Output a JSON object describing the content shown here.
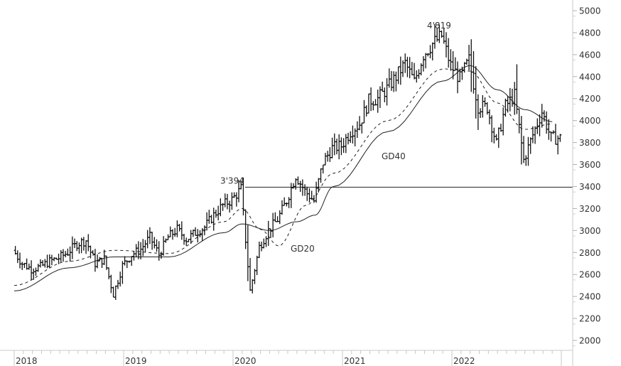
{
  "chart_data": {
    "type": "line",
    "subtype": "ohlc-bar-price-chart-with-moving-averages",
    "title": "",
    "xlabel": "",
    "ylabel": "",
    "ylim": [
      1950,
      5050
    ],
    "y_ticks": [
      2000,
      2200,
      2400,
      2600,
      2800,
      3000,
      3200,
      3400,
      3600,
      3800,
      4000,
      4200,
      4400,
      4600,
      4800,
      5000
    ],
    "x_ticks": [
      "2018",
      "2019",
      "2020",
      "2021",
      "2022"
    ],
    "grid": false,
    "legend": "none",
    "axis_position": "right",
    "annotations": [
      {
        "text": "3'394",
        "value": 3394,
        "note": "Feb 2020 high, horizontal reference line drawn from here to right edge"
      },
      {
        "text": "4'819",
        "value": 4819,
        "note": "Jan 2022 all-time high"
      },
      {
        "text": "GD20",
        "note": "20-week moving average (dashed)"
      },
      {
        "text": "GD40",
        "note": "40-week moving average (solid)"
      }
    ],
    "horizontal_line": {
      "value": 3394
    },
    "series": [
      {
        "name": "Price (weekly, approx.)",
        "style": "bars",
        "x": [
          "2018-01",
          "2018-02",
          "2018-03",
          "2018-04",
          "2018-05",
          "2018-06",
          "2018-07",
          "2018-08",
          "2018-09",
          "2018-10",
          "2018-11",
          "2018-12",
          "2019-01",
          "2019-02",
          "2019-03",
          "2019-04",
          "2019-05",
          "2019-06",
          "2019-07",
          "2019-08",
          "2019-09",
          "2019-10",
          "2019-11",
          "2019-12",
          "2020-01",
          "2020-02",
          "2020-03",
          "2020-04",
          "2020-05",
          "2020-06",
          "2020-07",
          "2020-08",
          "2020-09",
          "2020-10",
          "2020-11",
          "2020-12",
          "2021-01",
          "2021-02",
          "2021-03",
          "2021-04",
          "2021-05",
          "2021-06",
          "2021-07",
          "2021-08",
          "2021-09",
          "2021-10",
          "2021-11",
          "2021-12",
          "2022-01",
          "2022-02",
          "2022-03",
          "2022-04",
          "2022-05",
          "2022-06",
          "2022-07",
          "2022-08",
          "2022-09",
          "2022-10",
          "2022-11",
          "2022-12"
        ],
        "values": [
          2820,
          2700,
          2650,
          2670,
          2720,
          2750,
          2800,
          2880,
          2910,
          2700,
          2740,
          2420,
          2680,
          2780,
          2830,
          2940,
          2780,
          2940,
          3010,
          2920,
          2980,
          3030,
          3140,
          3230,
          3280,
          3380,
          2450,
          2850,
          3000,
          3100,
          3270,
          3500,
          3360,
          3270,
          3620,
          3750,
          3770,
          3900,
          3970,
          4180,
          4200,
          4290,
          4400,
          4520,
          4350,
          4600,
          4700,
          4770,
          4500,
          4380,
          4550,
          4130,
          4120,
          3790,
          4130,
          4230,
          3640,
          3870,
          4080,
          3840
        ]
      },
      {
        "name": "GD20",
        "style": "dashed",
        "x": [
          "2018-01",
          "2018-07",
          "2018-12",
          "2019-06",
          "2019-12",
          "2020-02",
          "2020-04",
          "2020-06",
          "2020-09",
          "2020-12",
          "2021-06",
          "2021-12",
          "2022-03",
          "2022-06",
          "2022-09",
          "2022-12"
        ],
        "values": [
          2500,
          2720,
          2820,
          2790,
          3080,
          3200,
          3010,
          2860,
          3230,
          3520,
          4000,
          4470,
          4450,
          4160,
          3920,
          3970
        ]
      },
      {
        "name": "GD40",
        "style": "solid",
        "x": [
          "2018-01",
          "2018-07",
          "2018-12",
          "2019-06",
          "2019-12",
          "2020-02",
          "2020-05",
          "2020-08",
          "2020-10",
          "2020-12",
          "2021-06",
          "2021-12",
          "2022-03",
          "2022-06",
          "2022-09",
          "2022-12"
        ],
        "values": [
          2450,
          2660,
          2760,
          2760,
          2980,
          3060,
          3000,
          3080,
          3140,
          3400,
          3900,
          4360,
          4500,
          4280,
          4100,
          3990
        ]
      }
    ]
  }
}
